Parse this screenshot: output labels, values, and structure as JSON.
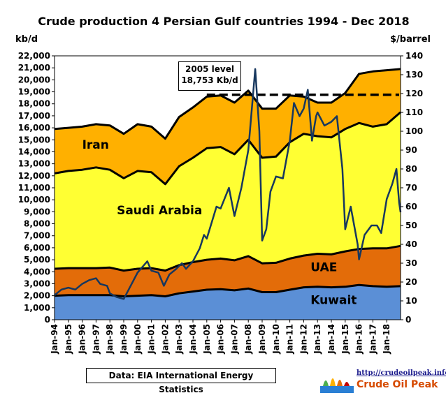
{
  "chart_data": {
    "type": "area",
    "title": "Crude  production 4 Persian Gulf countries 1994 - Dec 2018",
    "y_left_unit": "kb/d",
    "y_right_unit": "$/barrel",
    "ylim_left": [
      0,
      22000
    ],
    "ylim_right": [
      0,
      140
    ],
    "y_left_ticks": [
      "0",
      "1,000",
      "2,000",
      "3,000",
      "4,000",
      "5,000",
      "6,000",
      "7,000",
      "8,000",
      "9,000",
      "10,000",
      "11,000",
      "12,000",
      "13,000",
      "14,000",
      "15,000",
      "16,000",
      "17,000",
      "18,000",
      "19,000",
      "20,000",
      "21,000",
      "22,000"
    ],
    "y_right_ticks": [
      "0",
      "10",
      "20",
      "30",
      "40",
      "50",
      "60",
      "70",
      "80",
      "90",
      "100",
      "110",
      "120",
      "130",
      "140"
    ],
    "x_ticks": [
      "Jan-94",
      "Jan-95",
      "Jan-96",
      "Jan-97",
      "Jan-98",
      "Jan-99",
      "Jan-00",
      "Jan-01",
      "Jan-02",
      "Jan-03",
      "Jan-04",
      "Jan-05",
      "Jan-06",
      "Jan-07",
      "Jan-08",
      "Jan-09",
      "Jan-10",
      "Jan-11",
      "Jan-12",
      "Jan-13",
      "Jan-14",
      "Jan-15",
      "Jan-16",
      "Jan-17",
      "Jan-18"
    ],
    "x_range": [
      1994.0,
      2019.0
    ],
    "series": [
      {
        "name": "Kuwait",
        "color": "#5b8fd6",
        "stack_top": [
          [
            1994,
            2000
          ],
          [
            1995,
            2050
          ],
          [
            1996,
            2050
          ],
          [
            1997,
            2050
          ],
          [
            1998,
            2050
          ],
          [
            1999,
            1950
          ],
          [
            2000,
            2000
          ],
          [
            2001,
            2050
          ],
          [
            2002,
            1950
          ],
          [
            2003,
            2200
          ],
          [
            2004,
            2350
          ],
          [
            2005,
            2500
          ],
          [
            2006,
            2550
          ],
          [
            2007,
            2450
          ],
          [
            2008,
            2600
          ],
          [
            2009,
            2300
          ],
          [
            2010,
            2300
          ],
          [
            2011,
            2500
          ],
          [
            2012,
            2700
          ],
          [
            2013,
            2750
          ],
          [
            2014,
            2700
          ],
          [
            2015,
            2750
          ],
          [
            2016,
            2900
          ],
          [
            2017,
            2800
          ],
          [
            2018,
            2750
          ],
          [
            2019,
            2800
          ]
        ]
      },
      {
        "name": "UAE",
        "color": "#e36c09",
        "stack_top": [
          [
            1994,
            4250
          ],
          [
            1995,
            4300
          ],
          [
            1996,
            4300
          ],
          [
            1997,
            4300
          ],
          [
            1998,
            4350
          ],
          [
            1999,
            4100
          ],
          [
            2000,
            4250
          ],
          [
            2001,
            4300
          ],
          [
            2002,
            4100
          ],
          [
            2003,
            4550
          ],
          [
            2004,
            4800
          ],
          [
            2005,
            5000
          ],
          [
            2006,
            5100
          ],
          [
            2007,
            4950
          ],
          [
            2008,
            5300
          ],
          [
            2009,
            4700
          ],
          [
            2010,
            4750
          ],
          [
            2011,
            5100
          ],
          [
            2012,
            5350
          ],
          [
            2013,
            5500
          ],
          [
            2014,
            5450
          ],
          [
            2015,
            5700
          ],
          [
            2016,
            5900
          ],
          [
            2017,
            5950
          ],
          [
            2018,
            5950
          ],
          [
            2019,
            6150
          ]
        ]
      },
      {
        "name": "Saudi  Arabia",
        "color": "#ffff33",
        "stack_top": [
          [
            1994,
            12200
          ],
          [
            1995,
            12400
          ],
          [
            1996,
            12500
          ],
          [
            1997,
            12700
          ],
          [
            1998,
            12500
          ],
          [
            1999,
            11800
          ],
          [
            2000,
            12400
          ],
          [
            2001,
            12300
          ],
          [
            2002,
            11300
          ],
          [
            2003,
            12800
          ],
          [
            2004,
            13500
          ],
          [
            2005,
            14300
          ],
          [
            2006,
            14400
          ],
          [
            2007,
            13800
          ],
          [
            2008,
            15000
          ],
          [
            2009,
            13500
          ],
          [
            2010,
            13600
          ],
          [
            2011,
            14800
          ],
          [
            2012,
            15500
          ],
          [
            2013,
            15300
          ],
          [
            2014,
            15200
          ],
          [
            2015,
            15900
          ],
          [
            2016,
            16400
          ],
          [
            2017,
            16100
          ],
          [
            2018,
            16300
          ],
          [
            2019,
            17300
          ]
        ]
      },
      {
        "name": "Iran",
        "color": "#ffb000",
        "stack_top": [
          [
            1994,
            15900
          ],
          [
            1995,
            16000
          ],
          [
            1996,
            16100
          ],
          [
            1997,
            16300
          ],
          [
            1998,
            16200
          ],
          [
            1999,
            15500
          ],
          [
            2000,
            16300
          ],
          [
            2001,
            16100
          ],
          [
            2002,
            15100
          ],
          [
            2003,
            16900
          ],
          [
            2004,
            17700
          ],
          [
            2005,
            18600
          ],
          [
            2006,
            18700
          ],
          [
            2007,
            18100
          ],
          [
            2008,
            19100
          ],
          [
            2009,
            17600
          ],
          [
            2010,
            17600
          ],
          [
            2011,
            18700
          ],
          [
            2012,
            18600
          ],
          [
            2013,
            18100
          ],
          [
            2014,
            18100
          ],
          [
            2015,
            18900
          ],
          [
            2016,
            20500
          ],
          [
            2017,
            20700
          ],
          [
            2018,
            20800
          ],
          [
            2019,
            20900
          ]
        ]
      }
    ],
    "price_series": {
      "name": "Oil price",
      "color": "#17375e",
      "points": [
        [
          1994,
          13
        ],
        [
          1994.5,
          16
        ],
        [
          1995,
          17
        ],
        [
          1995.5,
          16
        ],
        [
          1996,
          19
        ],
        [
          1996.5,
          21
        ],
        [
          1997,
          22
        ],
        [
          1997.3,
          19
        ],
        [
          1997.8,
          18
        ],
        [
          1998,
          14
        ],
        [
          1998.5,
          12
        ],
        [
          1999,
          11
        ],
        [
          1999.5,
          18
        ],
        [
          2000,
          25
        ],
        [
          2000.7,
          31
        ],
        [
          2001,
          26
        ],
        [
          2001.5,
          25
        ],
        [
          2001.9,
          18
        ],
        [
          2002.3,
          24
        ],
        [
          2002.8,
          27
        ],
        [
          2003.2,
          30
        ],
        [
          2003.5,
          27
        ],
        [
          2004,
          31
        ],
        [
          2004.5,
          38
        ],
        [
          2004.8,
          45
        ],
        [
          2005,
          43
        ],
        [
          2005.7,
          60
        ],
        [
          2006,
          59
        ],
        [
          2006.6,
          70
        ],
        [
          2007,
          55
        ],
        [
          2007.5,
          70
        ],
        [
          2008,
          90
        ],
        [
          2008.5,
          133
        ],
        [
          2008.8,
          100
        ],
        [
          2009,
          42
        ],
        [
          2009.3,
          48
        ],
        [
          2009.6,
          68
        ],
        [
          2010,
          76
        ],
        [
          2010.5,
          75
        ],
        [
          2011,
          95
        ],
        [
          2011.3,
          115
        ],
        [
          2011.7,
          108
        ],
        [
          2012,
          112
        ],
        [
          2012.3,
          122
        ],
        [
          2012.6,
          95
        ],
        [
          2012.9,
          108
        ],
        [
          2013,
          110
        ],
        [
          2013.5,
          103
        ],
        [
          2014,
          105
        ],
        [
          2014.4,
          108
        ],
        [
          2014.8,
          80
        ],
        [
          2015,
          48
        ],
        [
          2015.4,
          60
        ],
        [
          2015.9,
          40
        ],
        [
          2016,
          32
        ],
        [
          2016.4,
          45
        ],
        [
          2016.9,
          50
        ],
        [
          2017.3,
          50
        ],
        [
          2017.6,
          46
        ],
        [
          2018,
          64
        ],
        [
          2018.4,
          72
        ],
        [
          2018.7,
          80
        ],
        [
          2018.9,
          62
        ],
        [
          2019,
          57
        ]
      ]
    },
    "reference_line": {
      "label": "2005 level 18,753 Kb/d",
      "value": 18753,
      "x_start": 2005.0
    },
    "annotations": {
      "level_label_line1": "2005 level",
      "level_label_line2": "18,753 Kb/d",
      "source": "Data: EIA International Energy Statistics"
    }
  },
  "logo": {
    "url": "http://crudeoilpeak.info",
    "name": "Crude Oil Peak"
  }
}
